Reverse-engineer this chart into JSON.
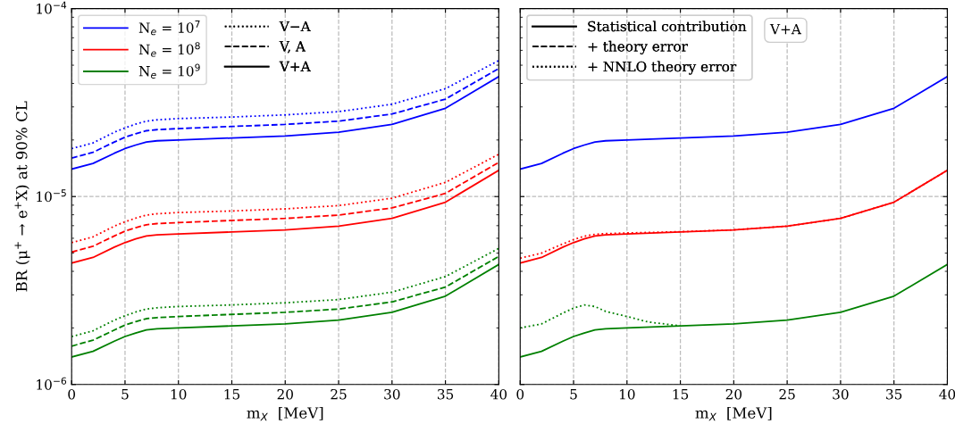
{
  "chart_data": [
    {
      "type": "line",
      "xlabel": "m$_{X}$  [MeV]",
      "ylabel": "BR (μ$^{+}$ → e$^{+}$X) at 90% CL",
      "log": "y",
      "grid": true,
      "legend": "top left",
      "x": [
        0,
        2,
        4,
        5,
        6,
        7,
        8,
        10,
        15,
        20,
        25,
        30,
        35,
        40
      ],
      "xlim": [
        0,
        40
      ],
      "xticks": [
        0,
        5,
        10,
        15,
        20,
        25,
        30,
        35,
        40
      ],
      "ylim": [
        1e-06,
        0.0001
      ],
      "yticks": [
        {
          "value": 1e-06,
          "label": "10$^{−6}$"
        },
        {
          "value": 1e-05,
          "label": "10$^{−5}$"
        },
        {
          "value": 0.0001,
          "label": "10$^{−4}$"
        }
      ],
      "annotations": [
        "V−A",
        "V, A",
        "V+A"
      ],
      "series": [
        {
          "color": "#0000ff",
          "line_style": "dotted",
          "values": [
            1.8e-05,
            1.93e-05,
            2.2e-05,
            2.32e-05,
            2.43e-05,
            2.52e-05,
            2.56e-05,
            2.6e-05,
            2.65e-05,
            2.72e-05,
            2.83e-05,
            3.1e-05,
            3.75e-05,
            5.3e-05
          ]
        },
        {
          "color": "#0000ff",
          "line_style": "dashed",
          "values": [
            1.6e-05,
            1.72e-05,
            1.95e-05,
            2.07e-05,
            2.16e-05,
            2.24e-05,
            2.27e-05,
            2.3e-05,
            2.36e-05,
            2.42e-05,
            2.52e-05,
            2.75e-05,
            3.3e-05,
            4.8e-05
          ]
        },
        {
          "name": "N$_{e}$ = 10$^{7}$",
          "color": "#0000ff",
          "line_style": "solid",
          "values": [
            1.4e-05,
            1.5e-05,
            1.7e-05,
            1.8e-05,
            1.88e-05,
            1.95e-05,
            1.98e-05,
            2e-05,
            2.05e-05,
            2.1e-05,
            2.2e-05,
            2.42e-05,
            2.95e-05,
            4.35e-05
          ]
        },
        {
          "color": "#ff0000",
          "line_style": "dotted",
          "values": [
            5.69e-06,
            6.1e-06,
            6.96e-06,
            7.34e-06,
            7.68e-06,
            7.97e-06,
            8.1e-06,
            8.22e-06,
            8.38e-06,
            8.6e-06,
            8.95e-06,
            9.8e-06,
            1.19e-05,
            1.68e-05
          ]
        },
        {
          "color": "#ff0000",
          "line_style": "dashed",
          "values": [
            5.06e-06,
            5.44e-06,
            6.17e-06,
            6.55e-06,
            6.83e-06,
            7.08e-06,
            7.18e-06,
            7.27e-06,
            7.46e-06,
            7.65e-06,
            7.97e-06,
            8.7e-06,
            1.04e-05,
            1.52e-05
          ]
        },
        {
          "name": "N$_{e}$ = 10$^{8}$",
          "color": "#ff0000",
          "line_style": "solid",
          "values": [
            4.43e-06,
            4.74e-06,
            5.38e-06,
            5.69e-06,
            5.95e-06,
            6.17e-06,
            6.26e-06,
            6.32e-06,
            6.48e-06,
            6.64e-06,
            6.96e-06,
            7.65e-06,
            9.33e-06,
            1.38e-05
          ]
        },
        {
          "color": "#008000",
          "line_style": "dotted",
          "values": [
            1.8e-06,
            1.93e-06,
            2.2e-06,
            2.32e-06,
            2.43e-06,
            2.52e-06,
            2.56e-06,
            2.6e-06,
            2.65e-06,
            2.72e-06,
            2.83e-06,
            3.1e-06,
            3.75e-06,
            5.3e-06
          ]
        },
        {
          "color": "#008000",
          "line_style": "dashed",
          "values": [
            1.6e-06,
            1.72e-06,
            1.95e-06,
            2.07e-06,
            2.16e-06,
            2.24e-06,
            2.27e-06,
            2.3e-06,
            2.36e-06,
            2.42e-06,
            2.52e-06,
            2.75e-06,
            3.3e-06,
            4.8e-06
          ]
        },
        {
          "name": "N$_{e}$ = 10$^{9}$",
          "color": "#008000",
          "line_style": "solid",
          "values": [
            1.4e-06,
            1.5e-06,
            1.7e-06,
            1.8e-06,
            1.88e-06,
            1.95e-06,
            1.98e-06,
            2e-06,
            2.05e-06,
            2.1e-06,
            2.2e-06,
            2.42e-06,
            2.95e-06,
            4.35e-06
          ]
        }
      ]
    },
    {
      "type": "line",
      "xlabel": "m$_{X}$  [MeV]",
      "log": "y",
      "grid": true,
      "legend": "top left",
      "tick_labels": "x",
      "x": [
        0,
        2,
        4,
        5,
        6,
        7,
        8,
        10,
        15,
        20,
        25,
        30,
        35,
        40
      ],
      "xlim": [
        0,
        40
      ],
      "xticks": [
        0,
        5,
        10,
        15,
        20,
        25,
        30,
        35,
        40
      ],
      "ylim": [
        1e-06,
        0.0001
      ],
      "yticks": [
        1e-06,
        1e-05,
        0.0001
      ],
      "annotations": [
        "Statistical contribution",
        "+ theory error",
        "+ NNLO theory error",
        "V+A"
      ],
      "series": [
        {
          "color": "#0000ff",
          "line_style": "solid",
          "values": [
            1.4e-05,
            1.5e-05,
            1.7e-05,
            1.8e-05,
            1.88e-05,
            1.95e-05,
            1.98e-05,
            2e-05,
            2.05e-05,
            2.1e-05,
            2.2e-05,
            2.42e-05,
            2.95e-05,
            4.35e-05
          ]
        },
        {
          "color": "#ff0000",
          "line_style": "dotted",
          "values": [
            4.7e-06,
            5e-06,
            5.6e-06,
            5.9e-06,
            6.15e-06,
            6.3e-06,
            6.35e-06,
            6.4e-06,
            6.5e-06,
            6.65e-06,
            6.96e-06,
            7.65e-06,
            9.33e-06,
            1.38e-05
          ]
        },
        {
          "color": "#ff0000",
          "line_style": "solid",
          "values": [
            4.43e-06,
            4.74e-06,
            5.38e-06,
            5.69e-06,
            5.95e-06,
            6.17e-06,
            6.26e-06,
            6.32e-06,
            6.48e-06,
            6.64e-06,
            6.96e-06,
            7.65e-06,
            9.33e-06,
            1.38e-05
          ]
        },
        {
          "color": "#008000",
          "line_style": "dotted",
          "x": [
            0,
            2,
            4,
            5,
            6,
            7,
            8,
            10,
            12,
            15
          ],
          "values": [
            2e-06,
            2.1e-06,
            2.4e-06,
            2.55e-06,
            2.65e-06,
            2.6e-06,
            2.45e-06,
            2.3e-06,
            2.15e-06,
            2.05e-06
          ]
        },
        {
          "color": "#008000",
          "line_style": "solid",
          "values": [
            1.4e-06,
            1.5e-06,
            1.7e-06,
            1.8e-06,
            1.88e-06,
            1.95e-06,
            1.98e-06,
            2e-06,
            2.05e-06,
            2.1e-06,
            2.2e-06,
            2.42e-06,
            2.95e-06,
            4.35e-06
          ]
        }
      ]
    }
  ]
}
